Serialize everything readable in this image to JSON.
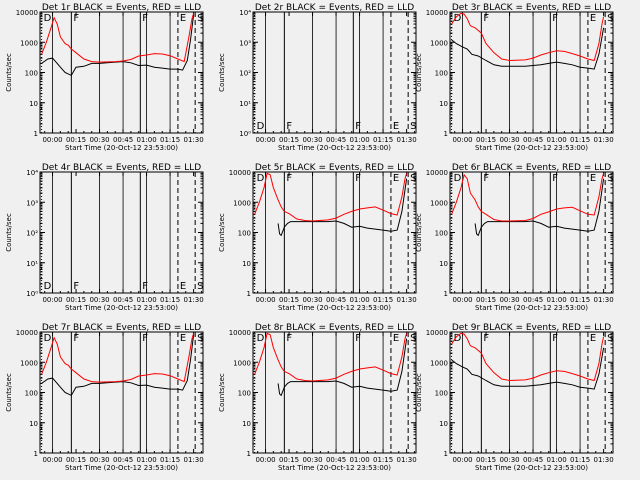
{
  "figure": {
    "panel_title_suffix": "BLACK = Events, RED = LLD",
    "xlabel": "Start Time (20-Oct-12 23:53:00)",
    "ylabel": "Counts/sec",
    "x_tick_labels": [
      "00:00",
      "00:15",
      "00:30",
      "00:45",
      "01:00",
      "01:15",
      "01:30"
    ],
    "log_tick_labels": [
      "1",
      "10",
      "100",
      "1000",
      "10000"
    ],
    "colors": {
      "events": "#000000",
      "lld": "#ff0000",
      "background": "#f0f0f0"
    }
  },
  "chart_data": [
    {
      "detector": "Det 1r",
      "type": "line",
      "yscale": "log",
      "xlim_minutes": [
        -8,
        96
      ],
      "ylim": [
        1,
        10000
      ],
      "has_data": true,
      "flags": [
        {
          "t": -7,
          "label": "D"
        },
        {
          "t": 12,
          "label": "F"
        },
        {
          "t": 56,
          "label": "F"
        },
        {
          "t": 80,
          "label": "E"
        },
        {
          "t": 91,
          "label": "S"
        }
      ],
      "series": [
        {
          "name": "BLACK = Events",
          "x": [
            -7,
            -3,
            0,
            3,
            5,
            8,
            12,
            15,
            20,
            25,
            30,
            40,
            45,
            50,
            55,
            60,
            65,
            70,
            75,
            80,
            83,
            86,
            88,
            90
          ],
          "values": [
            200,
            280,
            300,
            200,
            150,
            100,
            80,
            150,
            160,
            200,
            200,
            220,
            230,
            210,
            170,
            175,
            150,
            140,
            130,
            130,
            120,
            250,
            1200,
            8000
          ]
        },
        {
          "name": "RED = LLD",
          "x": [
            -7,
            -4,
            -1,
            1,
            3,
            5,
            8,
            10,
            12,
            15,
            20,
            25,
            30,
            40,
            45,
            50,
            55,
            60,
            65,
            70,
            75,
            80,
            84,
            87,
            89,
            90
          ],
          "values": [
            400,
            1000,
            3000,
            6500,
            4000,
            1500,
            900,
            800,
            600,
            450,
            280,
            230,
            220,
            230,
            240,
            270,
            350,
            380,
            420,
            410,
            360,
            280,
            230,
            1500,
            6000,
            9000
          ]
        }
      ]
    },
    {
      "detector": "Det 2r",
      "type": "line",
      "yscale": "log",
      "xlim_minutes": [
        -8,
        96
      ],
      "ylim": [
        1,
        10000
      ],
      "has_data": false,
      "y_tick_labels": [
        "10⁰",
        "10¹",
        "10²",
        "10³",
        "10⁴"
      ],
      "flags": [
        {
          "t": -7,
          "label": "D"
        },
        {
          "t": 12,
          "label": "F"
        },
        {
          "t": 56,
          "label": "F"
        },
        {
          "t": 80,
          "label": "E"
        },
        {
          "t": 91,
          "label": "S"
        }
      ],
      "series": []
    },
    {
      "detector": "Det 3r",
      "type": "line",
      "yscale": "log",
      "xlim_minutes": [
        -8,
        96
      ],
      "ylim": [
        1,
        10000
      ],
      "has_data": true,
      "flags": [
        {
          "t": -7,
          "label": "D"
        },
        {
          "t": 12,
          "label": "F"
        },
        {
          "t": 56,
          "label": "F"
        },
        {
          "t": 80,
          "label": "E"
        },
        {
          "t": 91,
          "label": "S"
        }
      ],
      "series": [
        {
          "name": "BLACK = Events",
          "x": [
            -7,
            -4,
            0,
            3,
            6,
            10,
            15,
            20,
            25,
            30,
            40,
            45,
            50,
            55,
            60,
            65,
            70,
            75,
            80,
            84,
            87,
            90
          ],
          "values": [
            1200,
            900,
            700,
            600,
            400,
            350,
            250,
            180,
            160,
            160,
            160,
            170,
            180,
            200,
            220,
            200,
            180,
            150,
            140,
            130,
            400,
            3000
          ]
        },
        {
          "name": "RED = LLD",
          "x": [
            -7,
            -4,
            -1,
            1,
            3,
            5,
            8,
            12,
            15,
            20,
            25,
            30,
            40,
            45,
            50,
            55,
            60,
            65,
            70,
            75,
            80,
            84,
            87,
            89,
            90
          ],
          "values": [
            4000,
            7000,
            9000,
            8500,
            6000,
            3500,
            3000,
            2000,
            900,
            450,
            280,
            250,
            260,
            300,
            380,
            450,
            520,
            500,
            420,
            350,
            280,
            250,
            900,
            4000,
            7000
          ]
        }
      ]
    },
    {
      "detector": "Det 4r",
      "type": "line",
      "yscale": "log",
      "xlim_minutes": [
        -8,
        96
      ],
      "ylim": [
        1,
        10000
      ],
      "has_data": false,
      "y_tick_labels": [
        "10⁰",
        "10¹",
        "10²",
        "10³",
        "10⁴"
      ],
      "flags": [
        {
          "t": -7,
          "label": "D"
        },
        {
          "t": 12,
          "label": "F"
        },
        {
          "t": 56,
          "label": "F"
        },
        {
          "t": 80,
          "label": "E"
        },
        {
          "t": 91,
          "label": "S"
        }
      ],
      "series": []
    },
    {
      "detector": "Det 5r",
      "type": "line",
      "yscale": "log",
      "xlim_minutes": [
        -8,
        96
      ],
      "ylim": [
        1,
        10000
      ],
      "has_data": true,
      "flags": [
        {
          "t": -7,
          "label": "D"
        },
        {
          "t": 12,
          "label": "F"
        },
        {
          "t": 56,
          "label": "F"
        },
        {
          "t": 80,
          "label": "E"
        },
        {
          "t": 91,
          "label": "S"
        }
      ],
      "series": [
        {
          "name": "BLACK = Events",
          "x": [
            8,
            9,
            10,
            12,
            14,
            16,
            20,
            25,
            30,
            40,
            45,
            50,
            55,
            60,
            65,
            70,
            75,
            80,
            84,
            87,
            90
          ],
          "values": [
            200,
            90,
            80,
            150,
            200,
            230,
            230,
            230,
            230,
            230,
            240,
            200,
            150,
            160,
            140,
            130,
            120,
            110,
            120,
            500,
            6000
          ]
        },
        {
          "name": "RED = LLD",
          "x": [
            -7,
            -4,
            -1,
            1,
            3,
            5,
            8,
            10,
            12,
            15,
            20,
            25,
            30,
            40,
            45,
            50,
            55,
            60,
            65,
            70,
            75,
            80,
            84,
            87,
            89,
            90
          ],
          "values": [
            400,
            1000,
            3000,
            9000,
            8000,
            3000,
            1200,
            700,
            500,
            420,
            280,
            250,
            240,
            260,
            300,
            400,
            500,
            600,
            650,
            700,
            550,
            420,
            380,
            1500,
            6000,
            9000
          ]
        }
      ]
    },
    {
      "detector": "Det 6r",
      "type": "line",
      "yscale": "log",
      "xlim_minutes": [
        -8,
        96
      ],
      "ylim": [
        1,
        10000
      ],
      "has_data": true,
      "flags": [
        {
          "t": -7,
          "label": "D"
        },
        {
          "t": 12,
          "label": "F"
        },
        {
          "t": 56,
          "label": "F"
        },
        {
          "t": 80,
          "label": "E"
        },
        {
          "t": 91,
          "label": "S"
        }
      ],
      "series": [
        {
          "name": "BLACK = Events",
          "x": [
            8,
            9,
            10,
            12,
            14,
            16,
            20,
            25,
            30,
            40,
            45,
            50,
            55,
            60,
            65,
            70,
            75,
            80,
            84,
            87,
            90
          ],
          "values": [
            200,
            90,
            80,
            150,
            200,
            230,
            230,
            230,
            230,
            230,
            240,
            200,
            150,
            160,
            140,
            130,
            120,
            110,
            120,
            500,
            6000
          ]
        },
        {
          "name": "RED = LLD",
          "x": [
            -7,
            -4,
            -1,
            1,
            3,
            5,
            8,
            10,
            12,
            15,
            20,
            25,
            30,
            40,
            45,
            50,
            55,
            60,
            65,
            70,
            75,
            80,
            84,
            87,
            89,
            90
          ],
          "values": [
            400,
            1000,
            3000,
            8000,
            6000,
            2000,
            1200,
            700,
            500,
            400,
            270,
            240,
            240,
            250,
            290,
            400,
            480,
            600,
            650,
            680,
            520,
            400,
            380,
            1500,
            6000,
            9000
          ]
        }
      ]
    },
    {
      "detector": "Det 7r",
      "type": "line",
      "yscale": "log",
      "xlim_minutes": [
        -8,
        96
      ],
      "ylim": [
        1,
        10000
      ],
      "has_data": true,
      "flags": [
        {
          "t": -7,
          "label": "D"
        },
        {
          "t": 12,
          "label": "F"
        },
        {
          "t": 56,
          "label": "F"
        },
        {
          "t": 80,
          "label": "E"
        },
        {
          "t": 91,
          "label": "S"
        }
      ],
      "series": [
        {
          "name": "BLACK = Events",
          "x": [
            -7,
            -3,
            0,
            3,
            5,
            8,
            12,
            15,
            20,
            25,
            30,
            40,
            45,
            50,
            55,
            60,
            65,
            70,
            75,
            80,
            83,
            86,
            88,
            90
          ],
          "values": [
            200,
            280,
            300,
            200,
            150,
            100,
            80,
            150,
            160,
            200,
            200,
            220,
            230,
            210,
            170,
            175,
            150,
            140,
            130,
            130,
            120,
            250,
            1200,
            8000
          ]
        },
        {
          "name": "RED = LLD",
          "x": [
            -7,
            -4,
            -1,
            1,
            3,
            5,
            8,
            10,
            12,
            15,
            20,
            25,
            30,
            40,
            45,
            50,
            55,
            60,
            65,
            70,
            75,
            80,
            84,
            87,
            89,
            90
          ],
          "values": [
            400,
            1000,
            3000,
            6500,
            4000,
            1500,
            900,
            800,
            600,
            450,
            280,
            230,
            220,
            230,
            240,
            270,
            350,
            380,
            420,
            410,
            360,
            280,
            230,
            1500,
            6000,
            9000
          ]
        }
      ]
    },
    {
      "detector": "Det 8r",
      "type": "line",
      "yscale": "log",
      "xlim_minutes": [
        -8,
        96
      ],
      "ylim": [
        1,
        10000
      ],
      "has_data": true,
      "flags": [
        {
          "t": -7,
          "label": "D"
        },
        {
          "t": 12,
          "label": "F"
        },
        {
          "t": 56,
          "label": "F"
        },
        {
          "t": 80,
          "label": "E"
        },
        {
          "t": 91,
          "label": "S"
        }
      ],
      "series": [
        {
          "name": "BLACK = Events",
          "x": [
            8,
            9,
            10,
            12,
            14,
            16,
            20,
            25,
            30,
            40,
            45,
            50,
            55,
            60,
            65,
            70,
            75,
            80,
            84,
            87,
            90
          ],
          "values": [
            200,
            90,
            80,
            150,
            200,
            230,
            230,
            230,
            230,
            230,
            240,
            200,
            150,
            160,
            140,
            130,
            120,
            110,
            120,
            500,
            6000
          ]
        },
        {
          "name": "RED = LLD",
          "x": [
            -7,
            -4,
            -1,
            1,
            3,
            5,
            8,
            10,
            12,
            15,
            20,
            25,
            30,
            40,
            45,
            50,
            55,
            60,
            65,
            70,
            75,
            80,
            84,
            87,
            89,
            90
          ],
          "values": [
            400,
            1000,
            3000,
            9000,
            8000,
            3000,
            1200,
            700,
            500,
            420,
            280,
            250,
            240,
            260,
            300,
            400,
            500,
            600,
            650,
            700,
            550,
            420,
            380,
            1500,
            6000,
            9000
          ]
        }
      ]
    },
    {
      "detector": "Det 9r",
      "type": "line",
      "yscale": "log",
      "xlim_minutes": [
        -8,
        96
      ],
      "ylim": [
        1,
        10000
      ],
      "has_data": true,
      "flags": [
        {
          "t": -7,
          "label": "D"
        },
        {
          "t": 12,
          "label": "F"
        },
        {
          "t": 56,
          "label": "F"
        },
        {
          "t": 80,
          "label": "E"
        },
        {
          "t": 91,
          "label": "S"
        }
      ],
      "series": [
        {
          "name": "BLACK = Events",
          "x": [
            -7,
            -4,
            0,
            3,
            6,
            10,
            15,
            20,
            25,
            30,
            40,
            45,
            50,
            55,
            60,
            65,
            70,
            75,
            80,
            84,
            87,
            90
          ],
          "values": [
            1200,
            900,
            700,
            600,
            400,
            350,
            250,
            180,
            160,
            160,
            160,
            170,
            180,
            200,
            220,
            200,
            180,
            150,
            140,
            130,
            400,
            3000
          ]
        },
        {
          "name": "RED = LLD",
          "x": [
            -7,
            -4,
            -1,
            1,
            3,
            5,
            8,
            12,
            15,
            20,
            25,
            30,
            40,
            45,
            50,
            55,
            60,
            65,
            70,
            75,
            80,
            84,
            87,
            89,
            90
          ],
          "values": [
            4000,
            7000,
            9000,
            8500,
            6000,
            3500,
            3000,
            2000,
            900,
            450,
            280,
            250,
            260,
            300,
            380,
            450,
            520,
            500,
            420,
            350,
            280,
            250,
            900,
            4000,
            7000
          ]
        }
      ]
    }
  ]
}
